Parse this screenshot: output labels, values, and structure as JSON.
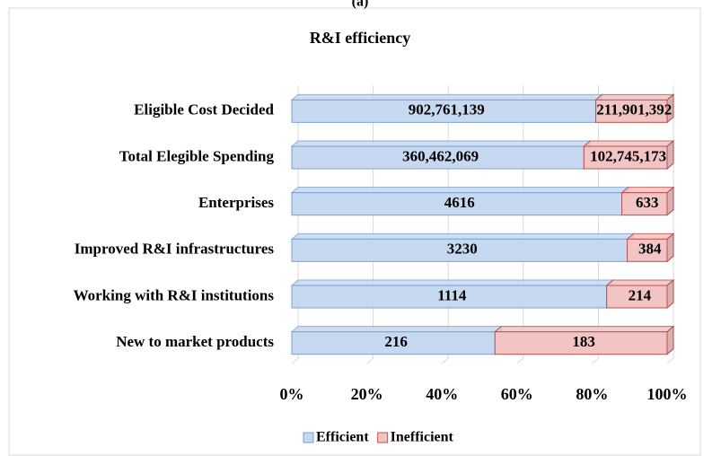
{
  "chart_data": {
    "type": "stacked-bar-100",
    "caption": "(a)",
    "title": "R&I efficiency",
    "categories": [
      "Eligible Cost Decided",
      "Total Elegible Spending",
      "Enterprises",
      "Improved R&I infrastructures",
      "Working with R&I institutions",
      "New to market products"
    ],
    "series": [
      {
        "name": "Efficient",
        "color": "#c6d9f1",
        "values": [
          902761139,
          360462069,
          4616,
          3230,
          1114,
          216
        ],
        "value_labels": [
          "902,761,139",
          "360,462,069",
          "4616",
          "3230",
          "1114",
          "216"
        ]
      },
      {
        "name": "Inefficient",
        "color": "#f2c4c4",
        "values": [
          211901392,
          102745173,
          633,
          384,
          214,
          183
        ],
        "value_labels": [
          "211,901,392",
          "102,745,173",
          "633",
          "384",
          "214",
          "183"
        ]
      }
    ],
    "xlim": [
      0,
      100
    ],
    "xticks": [
      {
        "value": 0,
        "label": "0%"
      },
      {
        "value": 20,
        "label": "20%"
      },
      {
        "value": 40,
        "label": "40%"
      },
      {
        "value": 60,
        "label": "60%"
      },
      {
        "value": 80,
        "label": "80%"
      },
      {
        "value": 100,
        "label": "100%"
      }
    ],
    "grid": true,
    "legend": "bottom"
  }
}
